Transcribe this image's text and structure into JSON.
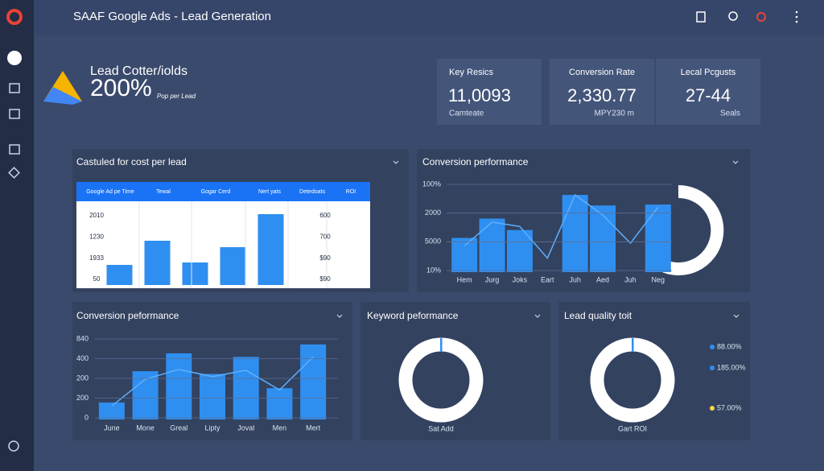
{
  "header": {
    "title": "SAAF Google Ads - Lead Generation"
  },
  "hero": {
    "title": "Lead Cotter/iolds",
    "value": "200%",
    "caption": "Pop per Lead"
  },
  "kpis": [
    {
      "label": "Key Resics",
      "value": "11,0093",
      "caption": "Camteate"
    },
    {
      "label": "Conversion Rate",
      "value": "2,330.77",
      "caption": "MPY230 m"
    },
    {
      "label": "Lecal Pcgusts",
      "value": "27-44",
      "caption": "Seals"
    }
  ],
  "panels": [
    {
      "title": "Castuled for cost per lead",
      "table_header": [
        "Google Ad pe Time",
        "Tewal",
        "Gogar Cerd",
        "Nert yats",
        "Detedoats",
        "ROI"
      ],
      "left_labels": [
        "2010",
        "1230",
        "1933",
        "50"
      ],
      "right_labels": [
        "600",
        "700",
        "$90",
        "$90"
      ],
      "chart": {
        "type": "bar",
        "values": [
          25,
          55,
          28,
          47,
          88
        ],
        "color": "#2f8ff0",
        "ylim": [
          0,
          100
        ]
      }
    },
    {
      "title": "Conversion performance",
      "y_labels": [
        "100%",
        "2000",
        "5000",
        "10%"
      ],
      "chart": {
        "type": "bar_line",
        "categories": [
          "Hem",
          "Jurg",
          "Joks",
          "Eart",
          "Juh",
          "Aed",
          "Juh",
          "Neg"
        ],
        "series": [
          {
            "color": "#2f8ff0",
            "values": [
              39,
              61,
              48,
              null,
              88,
              76,
              null,
              77
            ]
          },
          {
            "color": "#5fb0ff",
            "values": [
              30,
              57,
              52,
              16,
              88,
              65,
              33,
              74
            ]
          }
        ],
        "ylim": [
          0,
          100
        ]
      }
    },
    {
      "title": "Conversion peformance",
      "y_labels": [
        "840",
        "400",
        "200",
        "200",
        "0"
      ],
      "chart": {
        "type": "bar_line",
        "categories": [
          "June",
          "Mone",
          "Greal",
          "Lipty",
          "Joval",
          "Men",
          "Mert"
        ],
        "series": [
          {
            "color": "#2f8ff0",
            "values": [
              19,
              54,
              74,
              51,
              70,
              35,
              84
            ]
          },
          {
            "color": "#5fb0ff",
            "values": [
              15,
              45,
              56,
              48,
              55,
              33,
              70
            ]
          }
        ],
        "ylim": [
          0,
          100
        ]
      }
    },
    {
      "title": "Keyword peformance",
      "caption": "Sat Add"
    },
    {
      "title": "Lead quality toit",
      "caption": "Gart ROI",
      "legend": [
        {
          "label": "88.00%",
          "color": "#2f8ff0"
        },
        {
          "label": "185.00%",
          "color": "#2f8ff0"
        },
        {
          "label": "57.00%",
          "color": "#f5d742"
        }
      ]
    }
  ]
}
